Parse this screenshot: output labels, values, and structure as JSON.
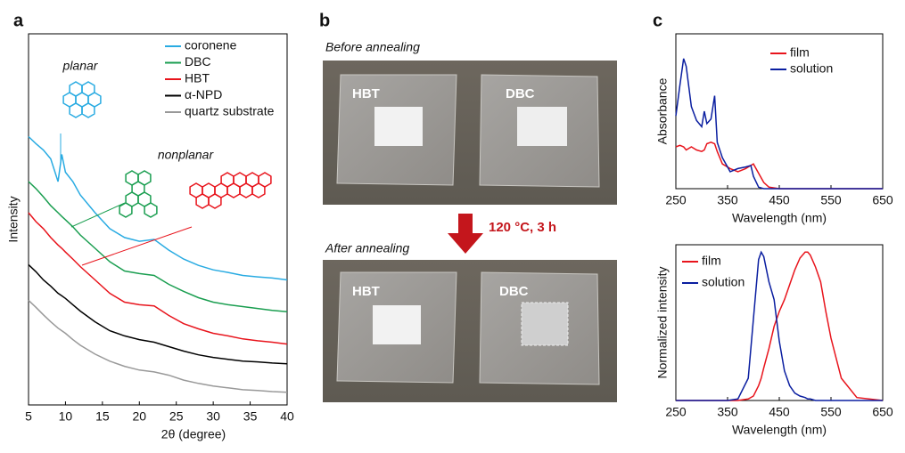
{
  "panel_labels": [
    "a",
    "b",
    "c"
  ],
  "photos": {
    "before": "Before annealing",
    "after": "After annealing",
    "condition": "120 °C, 3 h",
    "labels": [
      "HBT",
      "DBC",
      "HBT",
      "DBC"
    ]
  },
  "chart_data": [
    {
      "type": "line",
      "xlabel": "2θ (degree)",
      "ylabel": "Intensity",
      "annotations": [
        "planar",
        "nonplanar"
      ],
      "xlim": [
        5,
        40
      ],
      "xticks": [
        5,
        10,
        15,
        20,
        25,
        30,
        35,
        40
      ],
      "ylim": [
        0,
        100
      ],
      "x": [
        5,
        6,
        7,
        8,
        9,
        9.5,
        10,
        11,
        12,
        14,
        16,
        18,
        20,
        22,
        24,
        26,
        28,
        30,
        32,
        34,
        36,
        38,
        40
      ],
      "series": [
        {
          "name": "coronene",
          "color": "#29abe2",
          "values": [
            72.3,
            70.4,
            68.7,
            66.3,
            60.2,
            67.5,
            62.7,
            60.2,
            56.6,
            51.8,
            47.5,
            45.1,
            44.1,
            44.6,
            41.7,
            39.3,
            37.6,
            36.4,
            35.7,
            34.9,
            34.5,
            34.2,
            33.7
          ]
        },
        {
          "name": "DBC",
          "color": "#1a9e50",
          "values": [
            60.2,
            58.3,
            56.1,
            53.7,
            51.8,
            50.8,
            49.9,
            48.0,
            45.8,
            42.2,
            38.6,
            36.1,
            35.4,
            34.9,
            32.5,
            30.6,
            28.9,
            27.7,
            27.0,
            26.5,
            26.0,
            25.5,
            25.1
          ]
        },
        {
          "name": "HBT",
          "color": "#e8141c",
          "values": [
            51.8,
            49.4,
            47.5,
            45.1,
            43.1,
            42.2,
            41.2,
            39.3,
            37.3,
            33.7,
            30.1,
            27.7,
            27.0,
            26.7,
            24.1,
            21.9,
            20.5,
            19.3,
            18.6,
            17.8,
            17.3,
            16.9,
            16.4
          ]
        },
        {
          "name": "α-NPD",
          "color": "#000000",
          "values": [
            37.8,
            35.9,
            33.7,
            32.0,
            30.1,
            29.4,
            28.7,
            27.0,
            25.3,
            22.4,
            20.0,
            18.6,
            17.6,
            16.9,
            15.7,
            14.5,
            13.5,
            12.8,
            12.3,
            11.8,
            11.6,
            11.3,
            11.1
          ]
        },
        {
          "name": "quartz substrate",
          "color": "#999999",
          "values": [
            28.2,
            26.3,
            24.3,
            22.4,
            20.7,
            20.0,
            19.3,
            17.6,
            16.1,
            13.7,
            11.8,
            10.4,
            9.4,
            8.9,
            8.0,
            6.7,
            5.8,
            5.1,
            4.6,
            4.1,
            3.9,
            3.6,
            3.4
          ]
        }
      ]
    },
    {
      "type": "line",
      "xlabel": "Wavelength (nm)",
      "ylabel": "Absorbance",
      "xlim": [
        250,
        650
      ],
      "xticks": [
        250,
        350,
        450,
        550,
        650
      ],
      "ylim": [
        0,
        100
      ],
      "x": [
        250,
        258,
        265,
        270,
        280,
        290,
        300,
        305,
        310,
        318,
        325,
        330,
        340,
        355,
        370,
        385,
        395,
        400,
        410,
        420,
        430,
        450,
        500,
        550,
        600,
        650
      ],
      "series": [
        {
          "name": "film",
          "color": "#e8141c",
          "values": [
            27,
            28,
            27,
            25,
            27,
            25,
            24,
            25,
            29,
            30,
            29,
            24,
            16,
            13,
            11,
            13,
            15,
            16,
            10,
            4,
            1,
            0,
            0,
            0,
            0,
            0
          ]
        },
        {
          "name": "solution",
          "color": "#0a1ea0",
          "values": [
            47,
            67,
            84,
            79,
            53,
            44,
            40,
            50,
            42,
            45,
            60,
            30,
            20,
            11,
            13,
            14,
            15,
            8,
            1,
            0,
            0,
            0,
            0,
            0,
            0,
            0
          ]
        }
      ]
    },
    {
      "type": "line",
      "xlabel": "Wavelength (nm)",
      "ylabel": "Normalized intensity",
      "xlim": [
        250,
        650
      ],
      "xticks": [
        250,
        350,
        450,
        550,
        650
      ],
      "ylim": [
        0,
        1.05
      ],
      "x": [
        250,
        350,
        370,
        390,
        400,
        410,
        415,
        420,
        430,
        440,
        450,
        460,
        470,
        480,
        490,
        500,
        505,
        510,
        520,
        530,
        540,
        550,
        570,
        600,
        650
      ],
      "series": [
        {
          "name": "film",
          "color": "#e8141c",
          "values": [
            0,
            0,
            0,
            0.01,
            0.03,
            0.1,
            0.15,
            0.22,
            0.35,
            0.5,
            0.6,
            0.68,
            0.78,
            0.88,
            0.96,
            1.0,
            1.0,
            0.98,
            0.9,
            0.8,
            0.6,
            0.42,
            0.15,
            0.02,
            0
          ]
        },
        {
          "name": "solution",
          "color": "#0a1ea0",
          "values": [
            0,
            0,
            0.01,
            0.15,
            0.55,
            0.95,
            1.0,
            0.97,
            0.8,
            0.68,
            0.4,
            0.2,
            0.1,
            0.05,
            0.03,
            0.02,
            0.01,
            0.01,
            0,
            0,
            0,
            0,
            0,
            0,
            0
          ]
        }
      ]
    }
  ]
}
